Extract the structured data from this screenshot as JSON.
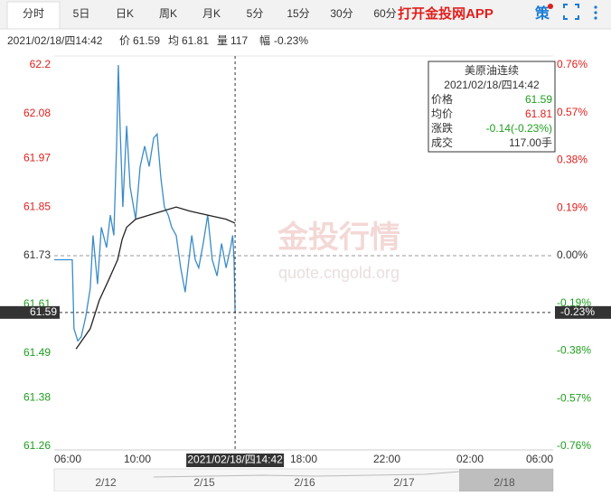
{
  "toolbar": {
    "tabs": [
      "分时",
      "5日",
      "日K",
      "周K",
      "月K",
      "5分",
      "15分",
      "30分",
      "60分"
    ],
    "app_link": "打开金投网APP",
    "strategy": "策"
  },
  "info_bar": {
    "time": "2021/02/18/四14:42",
    "price_label": "价",
    "price": 61.59,
    "avg_label": "均",
    "avg": 61.81,
    "volume_label": "量",
    "volume": 117,
    "range_label": "幅",
    "range": {
      "value": -0.23,
      "label": "-0.23%"
    }
  },
  "tooltip": {
    "title": "美原油连续",
    "time": "2021/02/18/四14:42",
    "rows": [
      [
        "价格",
        "61.59"
      ],
      [
        "均价",
        "61.81"
      ],
      [
        "涨跌",
        "-0.14(-0.23%)"
      ],
      [
        "成交",
        "117.00手"
      ]
    ]
  },
  "watermark": {
    "text": "金投行情",
    "url": "quote.cngold.org"
  },
  "chart_data": {
    "type": "line",
    "reference": 61.73,
    "current": {
      "value": 61.59,
      "change": {
        "value": -0.23,
        "label": "-0.23%"
      },
      "time": 522,
      "time_label": "2021/02/18/四14:42"
    },
    "xlim": [
      0,
      1440
    ],
    "xticks": [
      {
        "value": 0,
        "label": "06:00"
      },
      {
        "value": 240,
        "label": "10:00"
      },
      {
        "value": 720,
        "label": "18:00"
      },
      {
        "value": 960,
        "label": "22:00"
      },
      {
        "value": 1200,
        "label": "02:00"
      },
      {
        "value": 1440,
        "label": "06:00"
      }
    ],
    "ylim": [
      61.26,
      62.2
    ],
    "yticks": [
      62.2,
      62.08,
      61.97,
      61.85,
      61.73,
      61.61,
      61.49,
      61.38,
      61.26
    ],
    "y2lim": [
      -0.76,
      0.76
    ],
    "y2ticks": [
      {
        "value": 0.76,
        "label": "0.76%"
      },
      {
        "value": 0.57,
        "label": "0.57%"
      },
      {
        "value": 0.38,
        "label": "0.38%"
      },
      {
        "value": 0.19,
        "label": "0.19%"
      },
      {
        "value": 0,
        "label": "0.00%"
      },
      {
        "value": -0.19,
        "label": "-0.19%"
      },
      {
        "value": -0.38,
        "label": "-0.38%"
      },
      {
        "value": -0.57,
        "label": "-0.57%"
      },
      {
        "value": -0.76,
        "label": "-0.76%"
      }
    ],
    "series": [
      {
        "color": "#3a8bc8",
        "x": [
          0,
          52,
          57,
          68,
          78,
          91,
          104,
          112,
          125,
          136,
          151,
          162,
          172,
          180,
          185,
          190,
          198,
          209,
          219,
          235,
          248,
          261,
          274,
          287,
          297,
          308,
          318,
          329,
          339,
          352,
          365,
          378,
          386,
          397,
          407,
          417,
          430,
          443,
          456,
          470,
          483,
          496,
          509,
          515,
          519,
          522
        ],
        "values": [
          61.72,
          61.72,
          61.55,
          61.52,
          61.53,
          61.58,
          61.65,
          61.78,
          61.66,
          61.8,
          61.75,
          61.83,
          61.78,
          62.0,
          62.2,
          62.05,
          61.85,
          62.05,
          61.9,
          61.82,
          61.95,
          62.0,
          61.95,
          62.02,
          62.03,
          61.92,
          61.85,
          61.83,
          61.8,
          61.78,
          61.7,
          61.64,
          61.7,
          61.78,
          61.72,
          61.7,
          61.76,
          61.83,
          61.72,
          61.68,
          61.76,
          61.7,
          61.75,
          61.78,
          61.72,
          61.59
        ]
      },
      {
        "color": "#222222",
        "x": [
          63,
          104,
          130,
          157,
          183,
          196,
          209,
          235,
          274,
          313,
          352,
          391,
          443,
          496,
          522
        ],
        "values": [
          61.5,
          61.55,
          61.62,
          61.67,
          61.72,
          61.77,
          61.8,
          61.82,
          61.83,
          61.84,
          61.85,
          61.84,
          61.83,
          61.82,
          61.81
        ]
      }
    ],
    "navigator": [
      "2/12",
      "2/15",
      "2/16",
      "2/17",
      "2/18"
    ]
  }
}
